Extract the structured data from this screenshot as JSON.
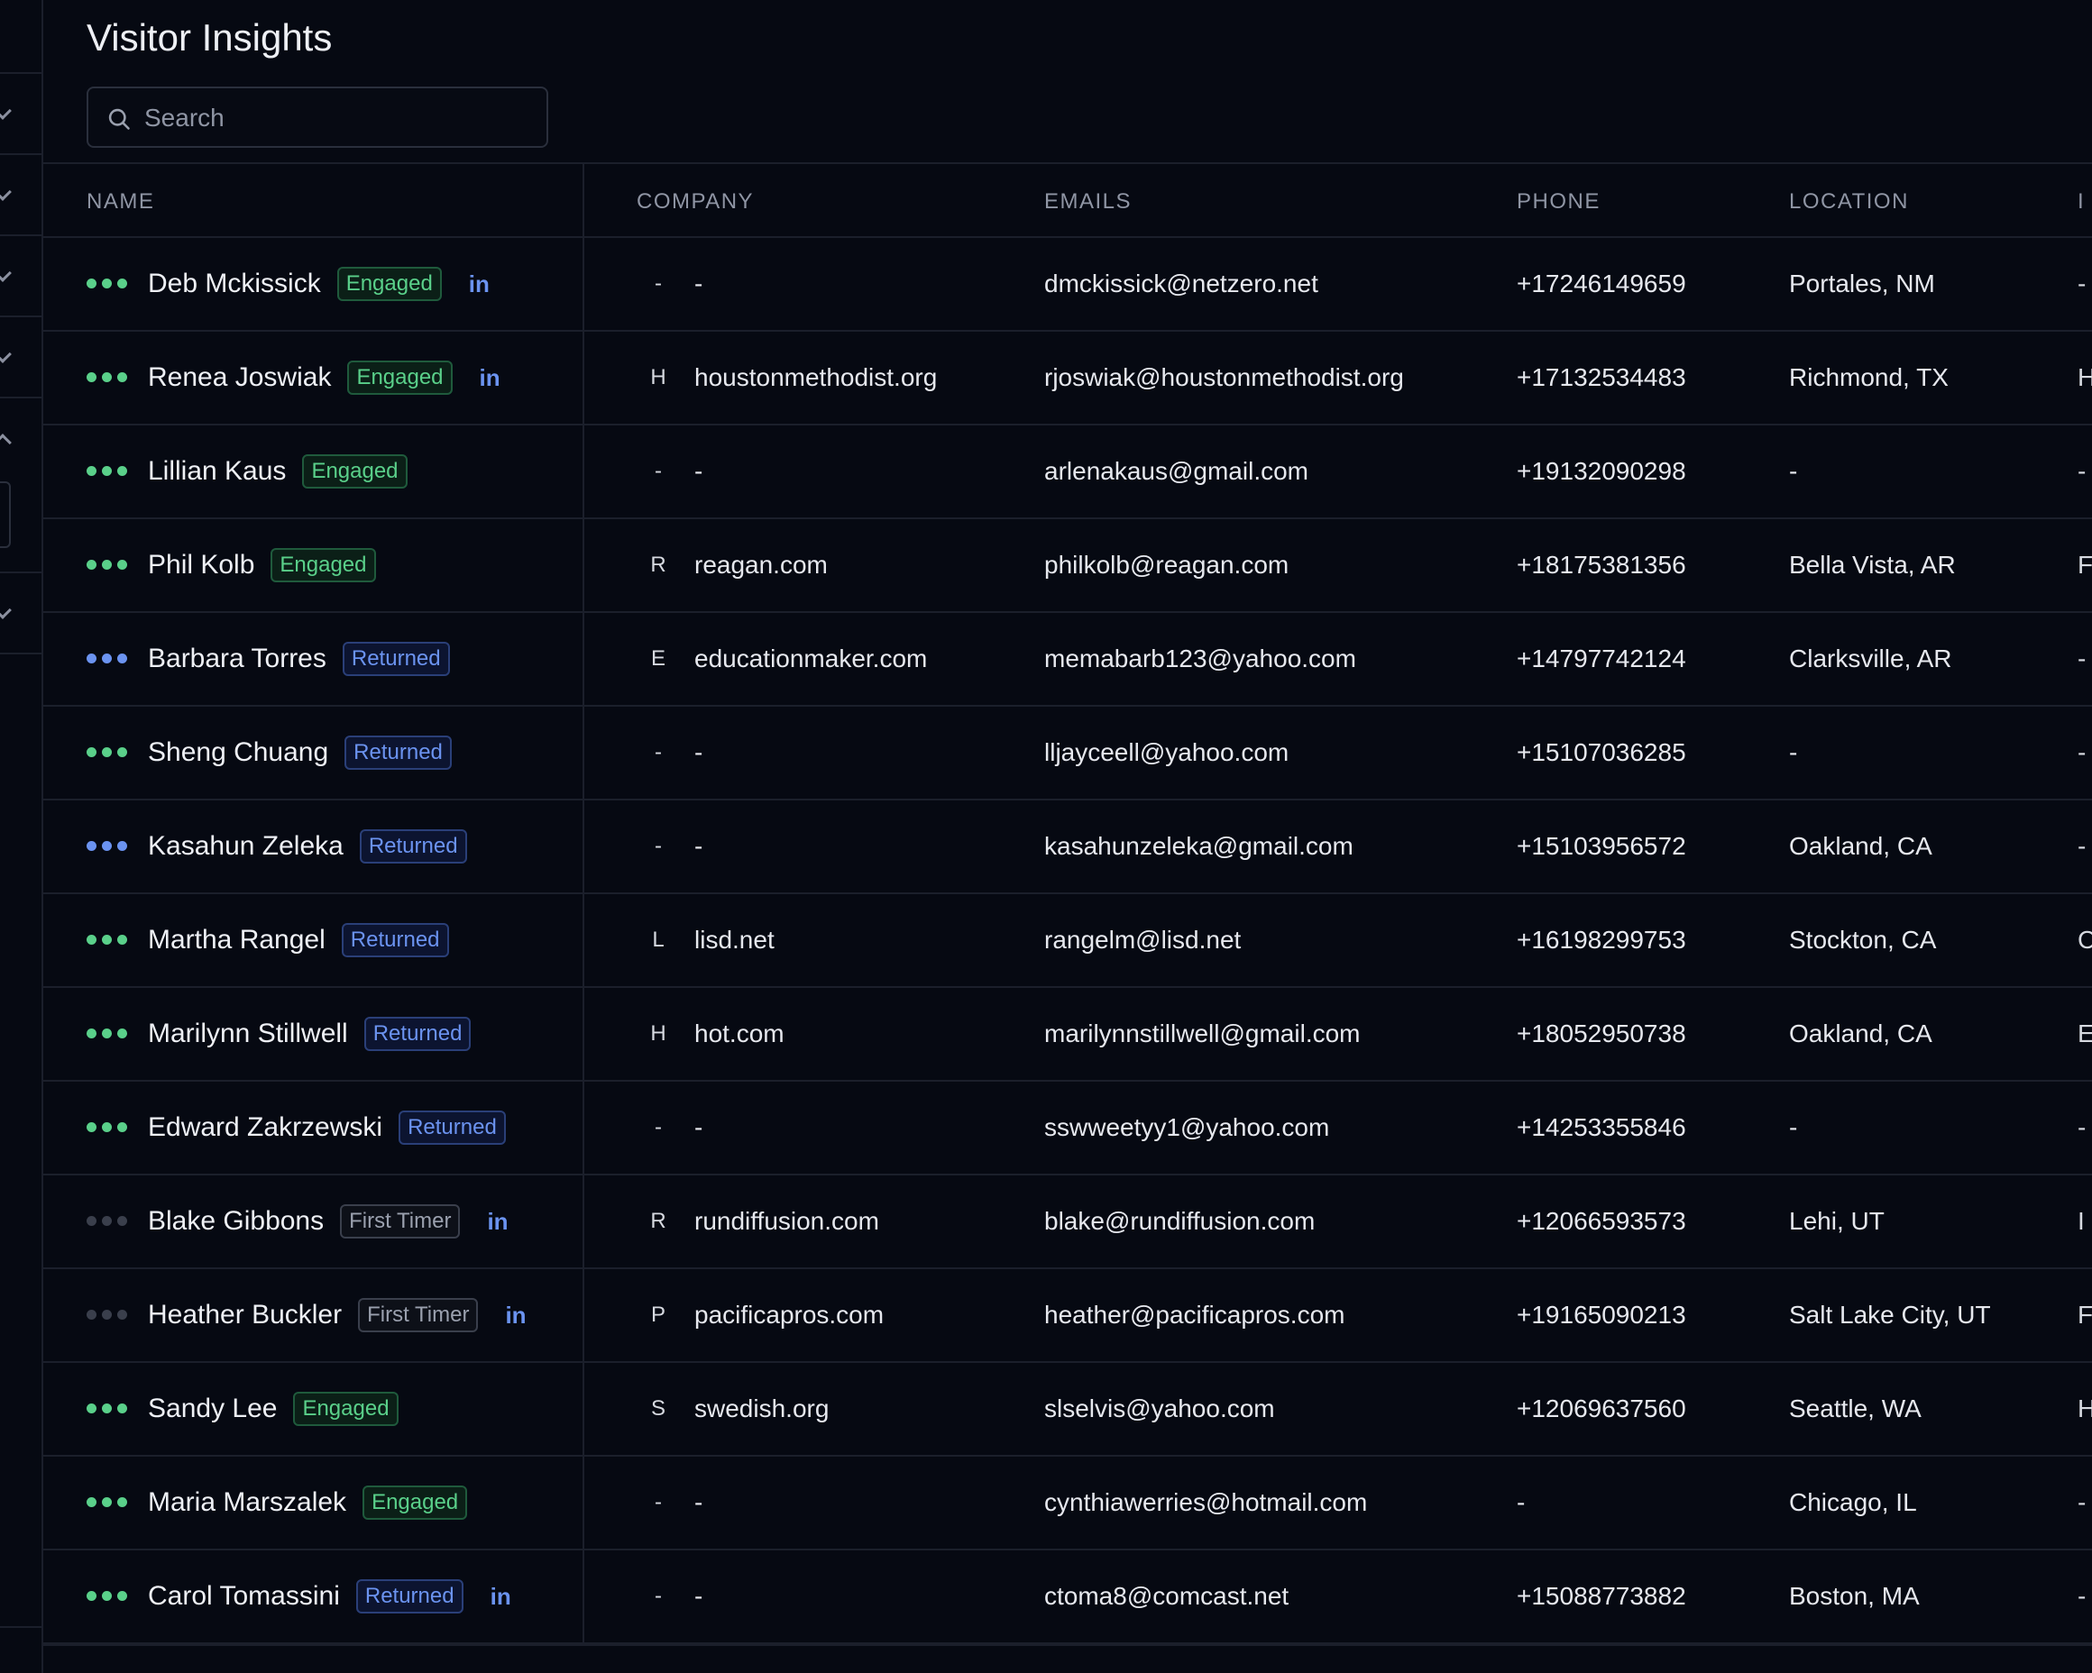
{
  "page": {
    "title": "Visitor Insights",
    "search_placeholder": "Search"
  },
  "colors": {
    "engaged": "#5ad08a",
    "returned": "#6b93f0",
    "first_timer": "#9aa0ae",
    "linkedin": "#6b93f0"
  },
  "table": {
    "headers": {
      "name": "NAME",
      "company": "COMPANY",
      "emails": "EMAILS",
      "phone": "PHONE",
      "location": "LOCATION",
      "extra": "I"
    },
    "rows": [
      {
        "name": "Deb Mckissick",
        "status": "Engaged",
        "dot_color": "#5ad08a",
        "linkedin": true,
        "co_initial": "-",
        "company": "-",
        "email": "dmckissick@netzero.net",
        "phone": "+17246149659",
        "location": "Portales, NM",
        "extra": "-"
      },
      {
        "name": "Renea Joswiak",
        "status": "Engaged",
        "dot_color": "#5ad08a",
        "linkedin": true,
        "co_initial": "H",
        "company": "houstonmethodist.org",
        "email": "rjoswiak@houstonmethodist.org",
        "phone": "+17132534483",
        "location": "Richmond, TX",
        "extra": "H"
      },
      {
        "name": "Lillian Kaus",
        "status": "Engaged",
        "dot_color": "#5ad08a",
        "linkedin": false,
        "co_initial": "-",
        "company": "-",
        "email": "arlenakaus@gmail.com",
        "phone": "+19132090298",
        "location": "-",
        "extra": "-"
      },
      {
        "name": "Phil Kolb",
        "status": "Engaged",
        "dot_color": "#5ad08a",
        "linkedin": false,
        "co_initial": "R",
        "company": "reagan.com",
        "email": "philkolb@reagan.com",
        "phone": "+18175381356",
        "location": "Bella Vista, AR",
        "extra": "F"
      },
      {
        "name": "Barbara Torres",
        "status": "Returned",
        "dot_color": "#6b93f0",
        "linkedin": false,
        "co_initial": "E",
        "company": "educationmaker.com",
        "email": "memabarb123@yahoo.com",
        "phone": "+14797742124",
        "location": "Clarksville, AR",
        "extra": "-"
      },
      {
        "name": "Sheng Chuang",
        "status": "Returned",
        "dot_color": "#5ad08a",
        "linkedin": false,
        "co_initial": "-",
        "company": "-",
        "email": "lljayceell@yahoo.com",
        "phone": "+15107036285",
        "location": "-",
        "extra": "-"
      },
      {
        "name": "Kasahun Zeleka",
        "status": "Returned",
        "dot_color": "#6b93f0",
        "linkedin": false,
        "co_initial": "-",
        "company": "-",
        "email": "kasahunzeleka@gmail.com",
        "phone": "+15103956572",
        "location": "Oakland, CA",
        "extra": "-"
      },
      {
        "name": "Martha Rangel",
        "status": "Returned",
        "dot_color": "#5ad08a",
        "linkedin": false,
        "co_initial": "L",
        "company": "lisd.net",
        "email": "rangelm@lisd.net",
        "phone": "+16198299753",
        "location": "Stockton, CA",
        "extra": "C"
      },
      {
        "name": "Marilynn Stillwell",
        "status": "Returned",
        "dot_color": "#5ad08a",
        "linkedin": false,
        "co_initial": "H",
        "company": "hot.com",
        "email": "marilynnstillwell@gmail.com",
        "phone": "+18052950738",
        "location": "Oakland, CA",
        "extra": "E"
      },
      {
        "name": "Edward Zakrzewski",
        "status": "Returned",
        "dot_color": "#5ad08a",
        "linkedin": false,
        "co_initial": "-",
        "company": "-",
        "email": "sswweetyy1@yahoo.com",
        "phone": "+14253355846",
        "location": "-",
        "extra": "-"
      },
      {
        "name": "Blake Gibbons",
        "status": "First Timer",
        "dot_color": "#3a3f4c",
        "linkedin": true,
        "co_initial": "R",
        "company": "rundiffusion.com",
        "email": "blake@rundiffusion.com",
        "phone": "+12066593573",
        "location": "Lehi, UT",
        "extra": "I"
      },
      {
        "name": "Heather Buckler",
        "status": "First Timer",
        "dot_color": "#3a3f4c",
        "linkedin": true,
        "co_initial": "P",
        "company": "pacificapros.com",
        "email": "heather@pacificapros.com",
        "phone": "+19165090213",
        "location": "Salt Lake City, UT",
        "extra": "F"
      },
      {
        "name": "Sandy Lee",
        "status": "Engaged",
        "dot_color": "#5ad08a",
        "linkedin": false,
        "co_initial": "S",
        "company": "swedish.org",
        "email": "slselvis@yahoo.com",
        "phone": "+12069637560",
        "location": "Seattle, WA",
        "extra": "H"
      },
      {
        "name": "Maria Marszalek",
        "status": "Engaged",
        "dot_color": "#5ad08a",
        "linkedin": false,
        "co_initial": "-",
        "company": "-",
        "email": "cynthiawerries@hotmail.com",
        "phone": "-",
        "location": "Chicago, IL",
        "extra": "-"
      },
      {
        "name": "Carol Tomassini",
        "status": "Returned",
        "dot_color": "#5ad08a",
        "linkedin": true,
        "co_initial": "-",
        "company": "-",
        "email": "ctoma8@comcast.net",
        "phone": "+15088773882",
        "location": "Boston, MA",
        "extra": "-"
      }
    ],
    "linkedin_label": "in"
  }
}
